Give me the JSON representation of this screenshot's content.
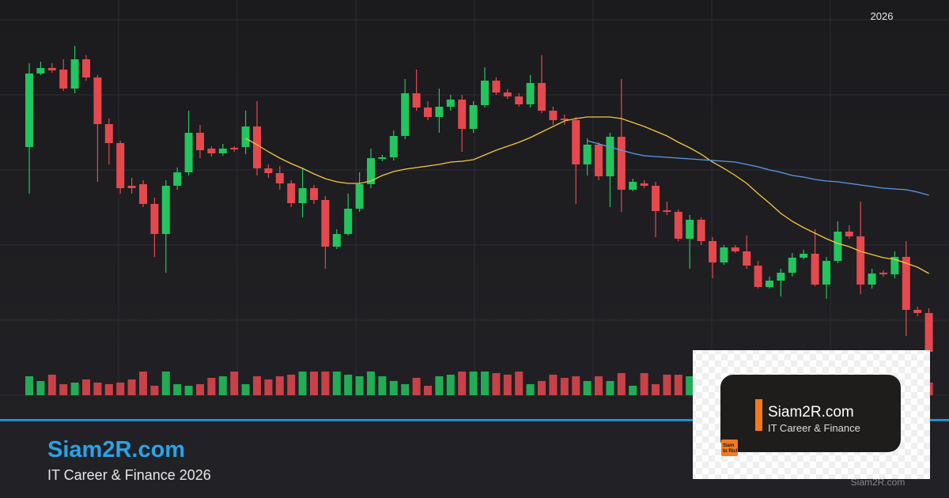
{
  "chart_data": {
    "type": "candlestick",
    "year_label": "2026",
    "ylim": [
      0,
      500
    ],
    "up_color": "#22c55e",
    "down_color": "#e5484d",
    "open": [
      314,
      407,
      414,
      412,
      388,
      425,
      402,
      343,
      319,
      265,
      267,
      242,
      204,
      265,
      282,
      332,
      312,
      306,
      313,
      314,
      340,
      287,
      281,
      268,
      243,
      262,
      247,
      188,
      204,
      236,
      267,
      299,
      301,
      328,
      382,
      364,
      352,
      365,
      374,
      337,
      367,
      398,
      383,
      378,
      368,
      395,
      360,
      350,
      348,
      292,
      317,
      277,
      327,
      260,
      268,
      265,
      234,
      232,
      198,
      222,
      195,
      168,
      187,
      182,
      164,
      137,
      145,
      155,
      174,
      179,
      140,
      170,
      207,
      201,
      140,
      155,
      153,
      175,
      108,
      104
    ],
    "high": [
      420,
      422,
      420,
      425,
      442,
      430,
      405,
      350,
      322,
      275,
      272,
      250,
      272,
      288,
      360,
      342,
      315,
      318,
      315,
      360,
      372,
      292,
      290,
      272,
      288,
      266,
      252,
      210,
      255,
      282,
      312,
      304,
      335,
      400,
      412,
      372,
      388,
      380,
      380,
      372,
      415,
      402,
      387,
      382,
      405,
      430,
      365,
      355,
      352,
      325,
      320,
      332,
      400,
      274,
      272,
      270,
      245,
      235,
      228,
      225,
      200,
      190,
      190,
      202,
      170,
      150,
      160,
      180,
      184,
      210,
      175,
      220,
      215,
      245,
      160,
      158,
      182,
      195,
      112,
      110
    ],
    "low": [
      255,
      405,
      408,
      385,
      382,
      398,
      270,
      292,
      255,
      255,
      238,
      175,
      155,
      260,
      278,
      300,
      302,
      303,
      308,
      305,
      278,
      275,
      260,
      238,
      225,
      242,
      160,
      185,
      202,
      232,
      262,
      296,
      297,
      324,
      360,
      348,
      332,
      360,
      308,
      332,
      364,
      380,
      375,
      365,
      364,
      357,
      342,
      342,
      242,
      278,
      272,
      238,
      232,
      258,
      262,
      200,
      228,
      195,
      160,
      190,
      148,
      165,
      180,
      160,
      135,
      135,
      125,
      150,
      172,
      138,
      122,
      167,
      198,
      128,
      135,
      150,
      148,
      75,
      100,
      50
    ],
    "close": [
      407,
      414,
      411,
      388,
      425,
      402,
      343,
      319,
      262,
      262,
      242,
      204,
      265,
      282,
      332,
      310,
      306,
      312,
      311,
      340,
      287,
      281,
      268,
      243,
      262,
      247,
      188,
      204,
      236,
      267,
      300,
      301,
      328,
      382,
      364,
      352,
      365,
      374,
      337,
      367,
      398,
      383,
      378,
      368,
      395,
      360,
      348,
      348,
      292,
      317,
      277,
      327,
      260,
      270,
      265,
      233,
      232,
      198,
      222,
      195,
      168,
      187,
      182,
      164,
      137,
      145,
      155,
      174,
      179,
      140,
      170,
      207,
      201,
      140,
      154,
      153,
      175,
      108,
      104,
      55
    ],
    "volume": {
      "values": [
        24,
        18,
        26,
        14,
        16,
        20,
        16,
        14,
        16,
        20,
        30,
        12,
        30,
        14,
        12,
        14,
        22,
        24,
        30,
        14,
        24,
        20,
        24,
        26,
        30,
        30,
        30,
        30,
        26,
        24,
        30,
        24,
        18,
        14,
        22,
        12,
        24,
        26,
        30,
        30,
        30,
        28,
        26,
        30,
        14,
        18,
        26,
        22,
        24,
        18,
        24,
        18,
        28,
        12,
        28,
        14,
        26,
        26,
        24,
        22,
        24,
        20,
        22,
        18,
        20,
        16,
        22,
        20,
        18,
        26,
        20,
        24,
        22,
        16,
        18,
        20,
        24,
        22,
        18,
        16
      ]
    },
    "series": [
      {
        "color": "#f5c542",
        "values": [
          null,
          null,
          null,
          null,
          null,
          null,
          null,
          null,
          null,
          null,
          null,
          null,
          null,
          null,
          null,
          null,
          null,
          null,
          null,
          325,
          317,
          308,
          300,
          293,
          287,
          280,
          274,
          270,
          268,
          268,
          271,
          278,
          283,
          286,
          288,
          290,
          292,
          295,
          296,
          298,
          304,
          310,
          315,
          320,
          326,
          333,
          340,
          347,
          350,
          352,
          352,
          352,
          350,
          345,
          340,
          334,
          328,
          320,
          313,
          305,
          295,
          287,
          278,
          268,
          255,
          243,
          230,
          220,
          212,
          205,
          198,
          192,
          188,
          182,
          178,
          174,
          172,
          167,
          162,
          154
        ]
      },
      {
        "color": "#5b9be8",
        "values": [
          null,
          null,
          null,
          null,
          null,
          null,
          null,
          null,
          null,
          null,
          null,
          null,
          null,
          null,
          null,
          null,
          null,
          null,
          null,
          null,
          null,
          null,
          null,
          null,
          null,
          null,
          null,
          null,
          null,
          null,
          null,
          null,
          null,
          null,
          null,
          null,
          null,
          null,
          null,
          null,
          null,
          null,
          null,
          null,
          null,
          null,
          null,
          null,
          null,
          322,
          318,
          314,
          310,
          306,
          303,
          302,
          301,
          300,
          299,
          298,
          297,
          296,
          295,
          292,
          289,
          285,
          282,
          278,
          276,
          273,
          271,
          270,
          268,
          266,
          264,
          262,
          261,
          260,
          257,
          253
        ]
      }
    ]
  },
  "branding": {
    "title": "Siam2R.com",
    "subtitle": "IT Career & Finance 2026",
    "card_title": "Siam2R.com",
    "card_subtitle": "IT Career & Finance",
    "badge_top": "Siam",
    "badge_bottom": "to Rich",
    "watermark": "Siam2R.com"
  }
}
